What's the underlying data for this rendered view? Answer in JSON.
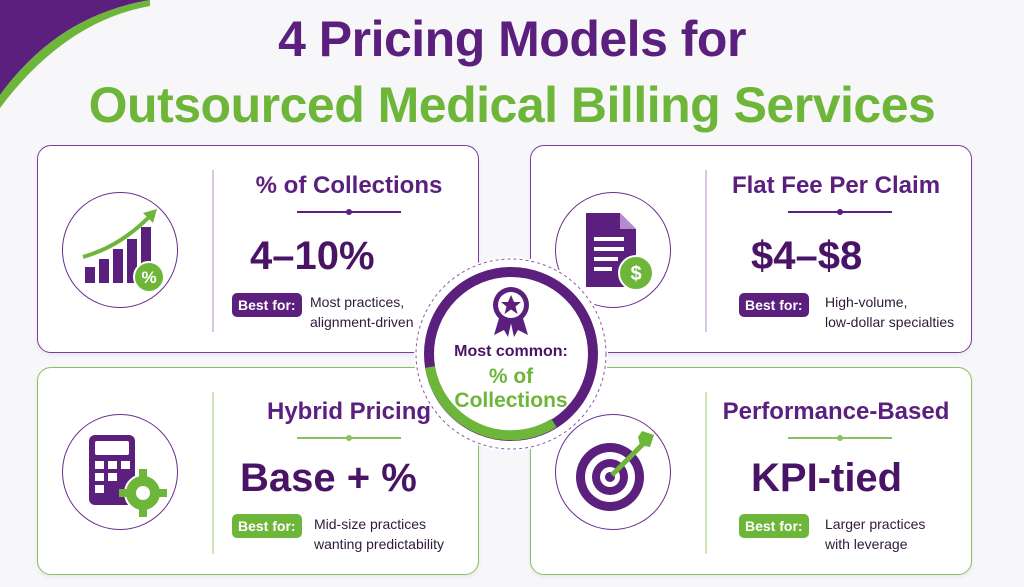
{
  "title": {
    "line1": "4 Pricing Models for",
    "line2": "Outsourced Medical Billing Services"
  },
  "colors": {
    "purple": "#5b1f7e",
    "green": "#6db63a"
  },
  "cards": [
    {
      "title": "% of Collections",
      "value": "4–10%",
      "best_label": "Best for:",
      "best_text": [
        "Most practices,",
        "alignment-driven"
      ],
      "icon": "growth-chart-percent-icon"
    },
    {
      "title": "Flat Fee Per Claim",
      "value": "$4–$8",
      "best_label": "Best for:",
      "best_text": [
        "High-volume,",
        "low-dollar specialties"
      ],
      "icon": "document-dollar-icon"
    },
    {
      "title": "Hybrid Pricing",
      "value": "Base + %",
      "best_label": "Best for:",
      "best_text": [
        "Mid-size practices",
        "wanting predictability"
      ],
      "icon": "calculator-gear-icon"
    },
    {
      "title": "Performance-Based",
      "value": "KPI-tied",
      "best_label": "Best for:",
      "best_text": [
        "Larger practices",
        "with leverage"
      ],
      "icon": "target-arrow-icon"
    }
  ],
  "center": {
    "label": "Most common:",
    "value_line1": "% of",
    "value_line2": "Collections",
    "icon": "award-ribbon-icon"
  }
}
